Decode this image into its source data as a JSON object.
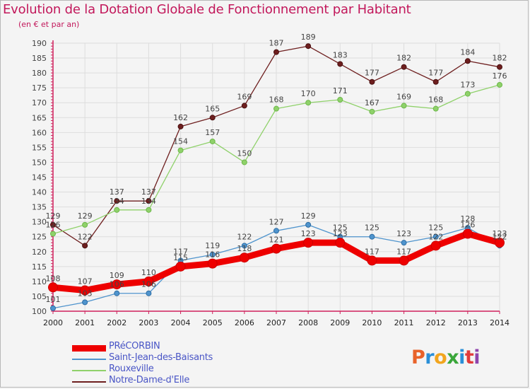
{
  "header": {
    "title": "Evolution de la Dotation Globale de Fonctionnement par Habitant",
    "subtitle": "(en € et par an)"
  },
  "logo": {
    "letters": [
      "P",
      "r",
      "o",
      "x",
      "i",
      "t",
      "i"
    ],
    "colors": [
      "#e8622a",
      "#2a8fd8",
      "#f2a51e",
      "#3aa63a",
      "#2a8fd8",
      "#e23b3b",
      "#8e44ad"
    ]
  },
  "colors": {
    "axis": "#d0205c",
    "grid": "#dddddd",
    "label": "#444444",
    "frame": "#b8b8b8"
  },
  "chart_data": {
    "type": "line",
    "title": "Evolution de la Dotation Globale de Fonctionnement par Habitant",
    "subtitle": "(en € et par an)",
    "x": [
      2000,
      2001,
      2002,
      2003,
      2004,
      2005,
      2006,
      2007,
      2008,
      2009,
      2010,
      2011,
      2012,
      2013,
      2014
    ],
    "x_tick_labels": [
      "2000",
      "2001",
      "2002",
      "2003",
      "2004",
      "2005",
      "2006",
      "2007",
      "2008",
      "2009",
      "2010",
      "2011",
      "2012",
      "2013",
      "2014"
    ],
    "y_ticks": [
      100,
      105,
      110,
      115,
      120,
      125,
      130,
      135,
      140,
      145,
      150,
      155,
      160,
      165,
      170,
      175,
      180,
      185,
      190
    ],
    "y_tick_labels": [
      "100",
      "105",
      "110",
      "115",
      "120",
      "125",
      "130",
      "135",
      "140",
      "145",
      "150",
      "155",
      "160",
      "165",
      "170",
      "175",
      "180",
      "185",
      "190"
    ],
    "ylim": [
      100,
      190
    ],
    "grid": true,
    "legend_position": "bottom-left",
    "series": [
      {
        "name": "Notre-Dame-d'Elle",
        "color": "#6e1f1f",
        "values": [
          129,
          122,
          137,
          137,
          162,
          165,
          169,
          187,
          189,
          183,
          177,
          182,
          177,
          184,
          182
        ],
        "labels": [
          "129",
          "122",
          "137",
          "137",
          "162",
          "165",
          "169",
          "187",
          "189",
          "183",
          "177",
          "182",
          "177",
          "184",
          "182"
        ]
      },
      {
        "name": "Rouxeville",
        "color": "#8fd16a",
        "values": [
          126,
          129,
          134,
          134,
          154,
          157,
          150,
          168,
          170,
          171,
          167,
          169,
          168,
          173,
          176
        ],
        "labels": [
          "126",
          "129",
          "134",
          "134",
          "154",
          "157",
          "150",
          "168",
          "170",
          "171",
          "167",
          "169",
          "168",
          "173",
          "176"
        ]
      },
      {
        "name": "Saint-Jean-des-Baisants",
        "color": "#4f94cd",
        "values": [
          101,
          103,
          106,
          106,
          117,
          119,
          122,
          127,
          129,
          125,
          125,
          123,
          125,
          128,
          122
        ],
        "labels": [
          "101",
          "103",
          "106",
          "106",
          "117",
          "119",
          "122",
          "127",
          "129",
          "125",
          "125",
          "123",
          "125",
          "128",
          "122"
        ]
      },
      {
        "name": "PRéCORBIN",
        "color": "#ee0000",
        "values": [
          108,
          107,
          109,
          110,
          115,
          116,
          118,
          121,
          123,
          123,
          117,
          117,
          122,
          126,
          123
        ],
        "labels": [
          "108",
          "107",
          "109",
          "110",
          "115",
          "116",
          "118",
          "121",
          "123",
          "123",
          "117",
          "117",
          "122",
          "126",
          "123"
        ]
      }
    ],
    "legend_order": [
      "PRéCORBIN",
      "Saint-Jean-des-Baisants",
      "Rouxeville",
      "Notre-Dame-d'Elle"
    ]
  }
}
